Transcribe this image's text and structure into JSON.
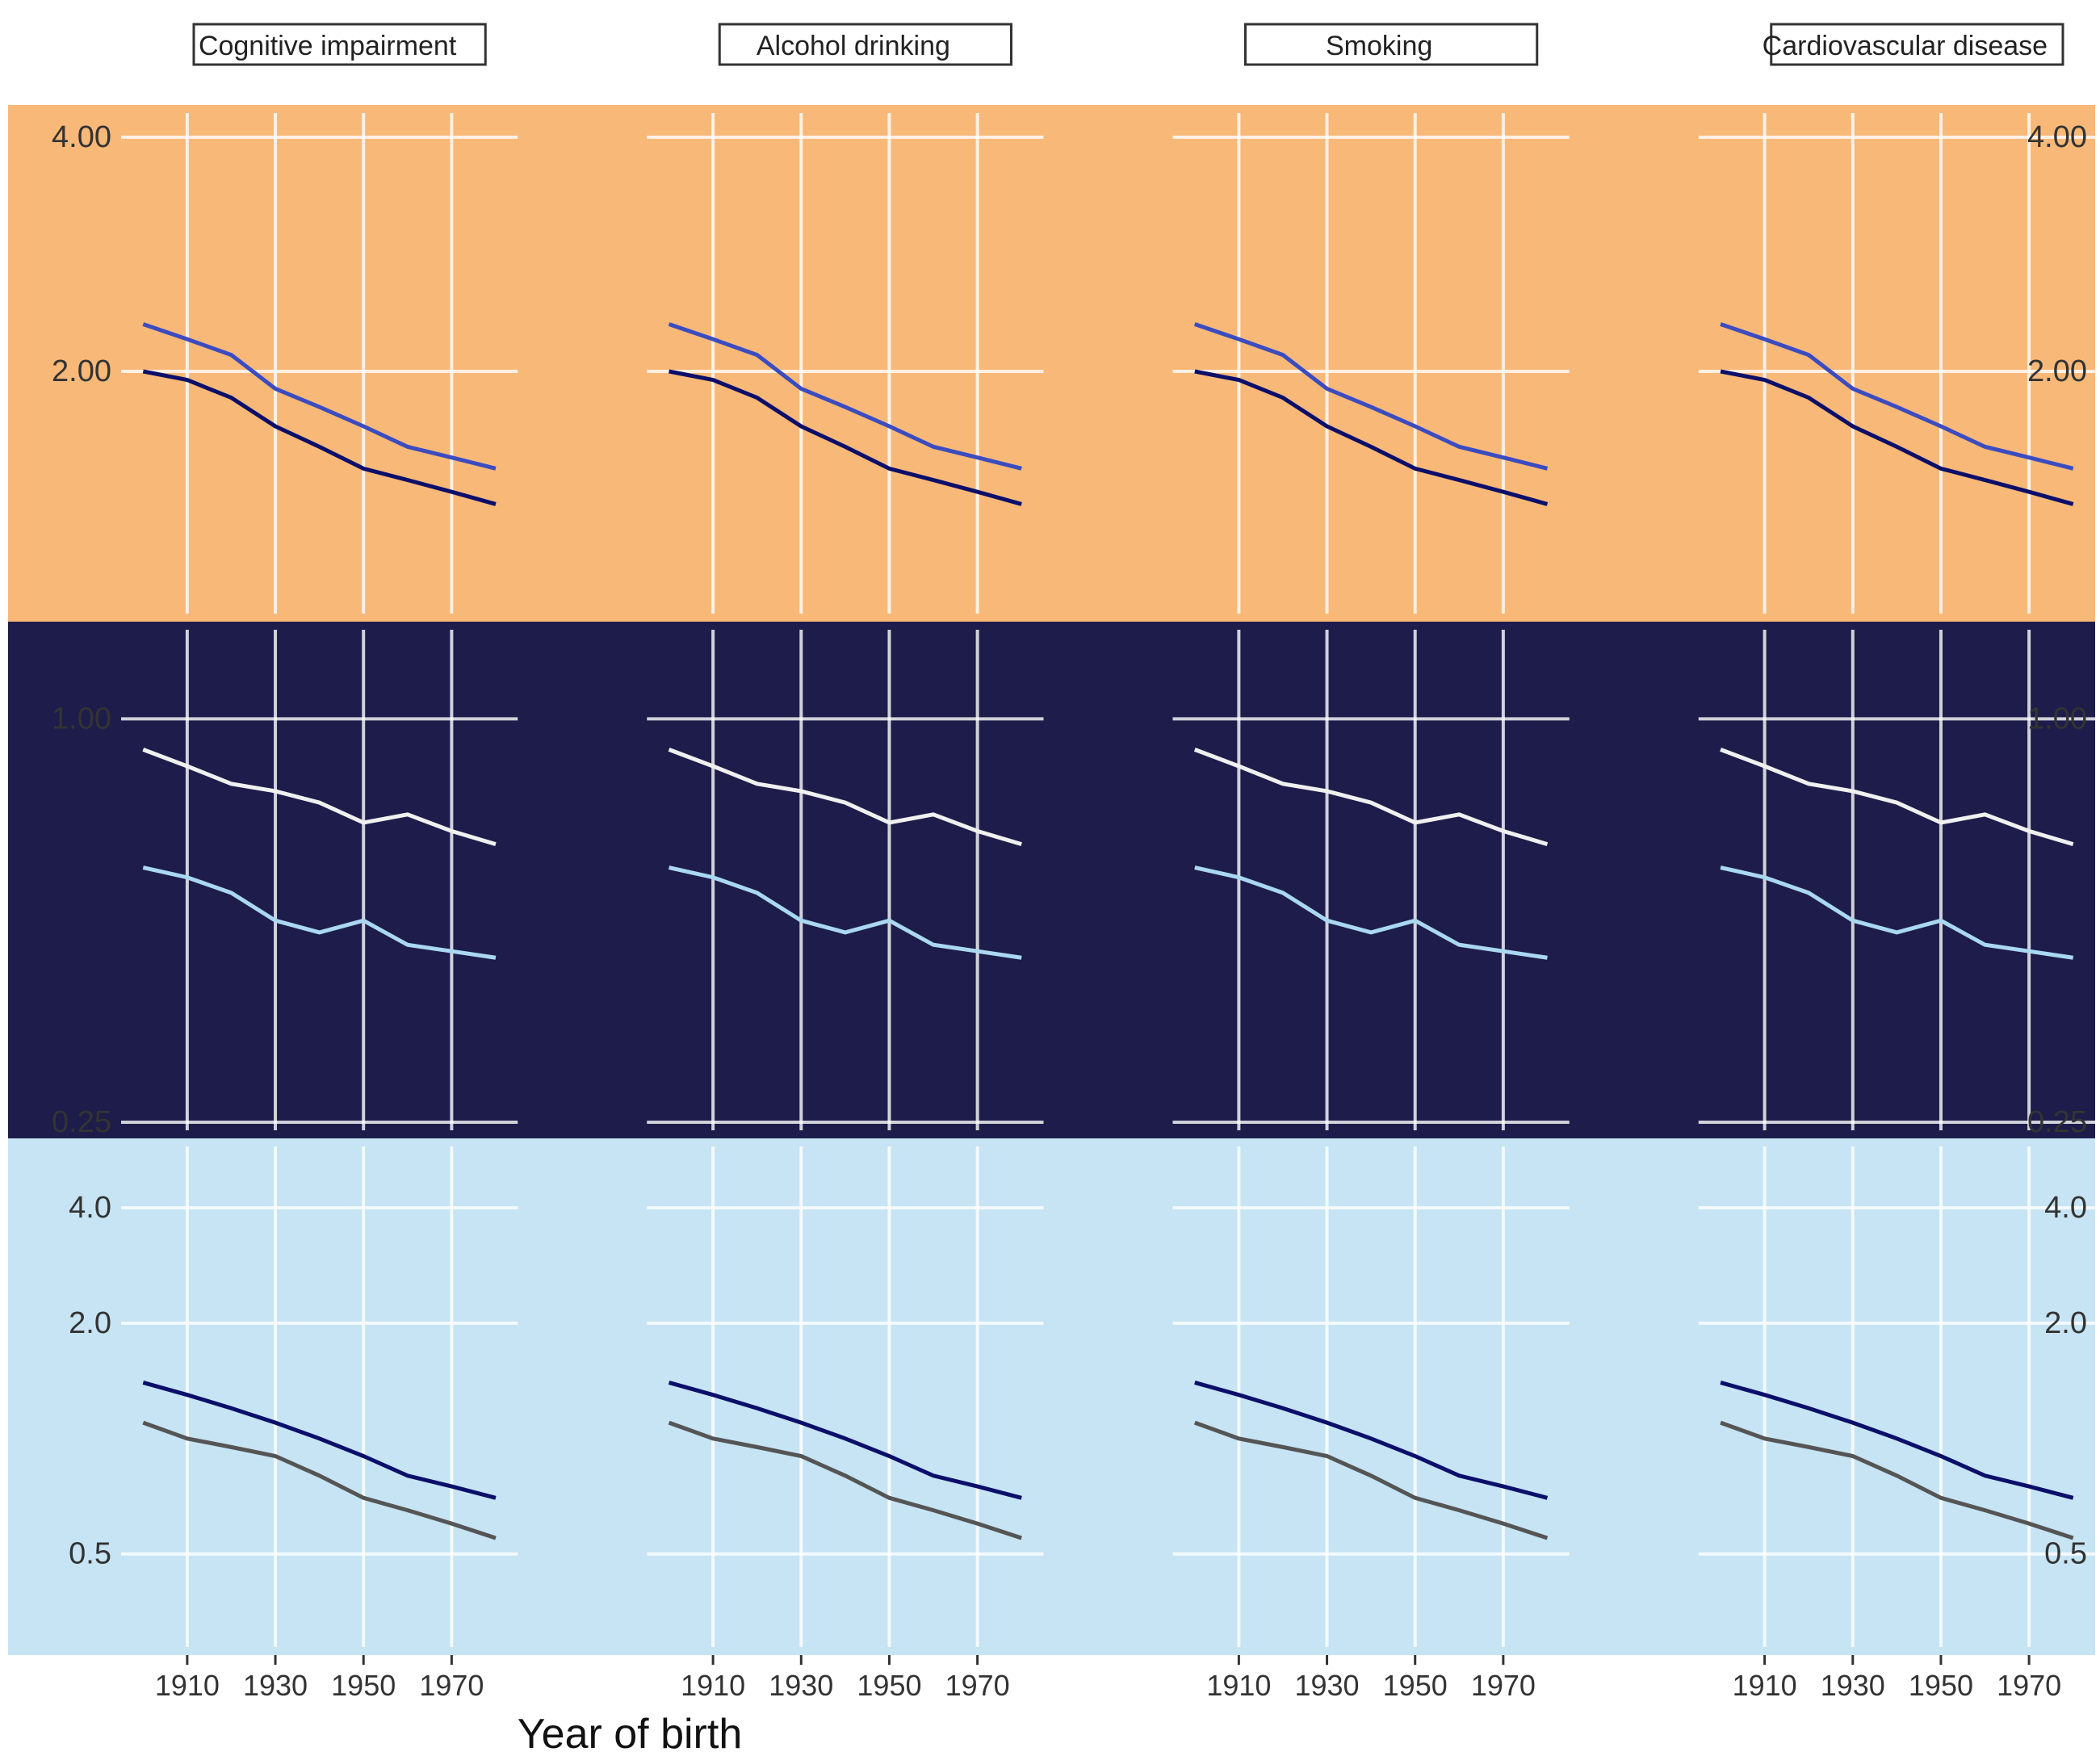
{
  "chart_data": {
    "type": "line",
    "xlabel": "Year of birth",
    "ylabel": "",
    "facet_columns": [
      "Cognitive impairment",
      "Alcohol drinking",
      "Smoking",
      "Cardiovascular disease"
    ],
    "rows": [
      {
        "band_color": "#f8b878",
        "ylim": [
          1.0,
          4.0
        ],
        "y_ticks": [
          4.0,
          2.0
        ],
        "y_tick_labels": [
          "4.00",
          "2.00"
        ],
        "series": [
          {
            "name": "",
            "color": "#0b0f6a",
            "x": [
              1900,
              1910,
              1920,
              1930,
              1940,
              1950,
              1960,
              1970,
              1980
            ],
            "y": [
              2.0,
              1.95,
              1.85,
              1.7,
              1.6,
              1.5,
              1.45,
              1.4,
              1.35
            ]
          },
          {
            "name": "",
            "color": "#3b4cc0",
            "x": [
              1900,
              1910,
              1920,
              1930,
              1940,
              1950,
              1960,
              1970,
              1980
            ],
            "y": [
              2.3,
              2.2,
              2.1,
              1.9,
              1.8,
              1.7,
              1.6,
              1.55,
              1.5
            ]
          }
        ]
      },
      {
        "band_color": "#1d1c4a",
        "ylim": [
          0.25,
          1.25
        ],
        "y_ticks": [
          1.0,
          0.25
        ],
        "y_tick_labels": [
          "1.00",
          "0.25"
        ],
        "series": [
          {
            "name": "",
            "color": "#f0f0f0",
            "x": [
              1900,
              1910,
              1920,
              1930,
              1940,
              1950,
              1960,
              1970,
              1980
            ],
            "y": [
              0.9,
              0.85,
              0.8,
              0.78,
              0.75,
              0.7,
              0.72,
              0.68,
              0.65
            ]
          },
          {
            "name": "",
            "color": "#a9d8f0",
            "x": [
              1900,
              1910,
              1920,
              1930,
              1940,
              1950,
              1960,
              1970,
              1980
            ],
            "y": [
              0.6,
              0.58,
              0.55,
              0.5,
              0.48,
              0.5,
              0.46,
              0.45,
              0.44
            ]
          }
        ]
      },
      {
        "band_color": "#c6e4f4",
        "ylim": [
          0.3,
          5.0
        ],
        "y_ticks": [
          4.0,
          2.0,
          0.5
        ],
        "y_tick_labels": [
          "4.0",
          "2.0",
          "0.5"
        ],
        "series": [
          {
            "name": "",
            "color": "#0b0f6a",
            "x": [
              1900,
              1910,
              1920,
              1930,
              1940,
              1950,
              1960,
              1970,
              1980
            ],
            "y": [
              1.4,
              1.3,
              1.2,
              1.1,
              1.0,
              0.9,
              0.8,
              0.75,
              0.7
            ]
          },
          {
            "name": "",
            "color": "#555555",
            "x": [
              1900,
              1910,
              1920,
              1930,
              1940,
              1950,
              1960,
              1970,
              1980
            ],
            "y": [
              1.1,
              1.0,
              0.95,
              0.9,
              0.8,
              0.7,
              0.65,
              0.6,
              0.55
            ]
          }
        ]
      }
    ],
    "x_ticks": [
      1910,
      1930,
      1950,
      1970
    ]
  }
}
